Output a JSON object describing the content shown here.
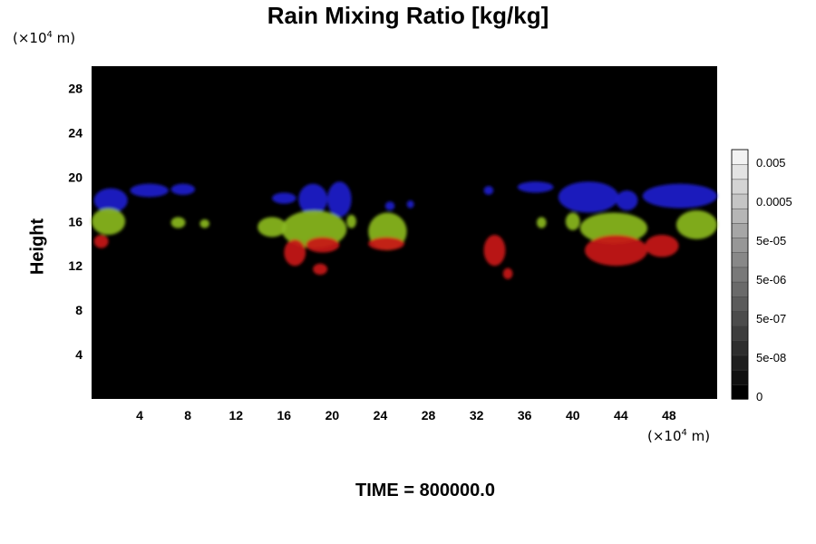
{
  "chart_data": {
    "type": "heatmap",
    "title": "Rain Mixing Ratio [kg/kg]",
    "ylabel": "Height",
    "x_unit": {
      "prefix": "(×10",
      "exp": "4",
      "suffix": " m)"
    },
    "y_unit": {
      "prefix": "(×10",
      "exp": "4",
      "suffix": " m)"
    },
    "xlim": [
      0,
      52
    ],
    "ylim": [
      0,
      30
    ],
    "x_ticks": [
      4,
      8,
      12,
      16,
      20,
      24,
      28,
      32,
      36,
      40,
      44,
      48
    ],
    "y_ticks": [
      4,
      8,
      12,
      16,
      20,
      24,
      28
    ],
    "grid": false,
    "background": "#000000",
    "footer": "TIME = 800000.0",
    "colorbar": {
      "labels": [
        "0.005",
        "0.0005",
        "5e-05",
        "5e-06",
        "5e-07",
        "5e-08",
        "0"
      ],
      "levels": 17
    },
    "layers": [
      {
        "name": "upper",
        "color": "#1c1ccc",
        "regions": [
          {
            "x": [
              0.2,
              3.0
            ],
            "y": [
              16.8,
              19.0
            ]
          },
          {
            "x": [
              3.2,
              6.4
            ],
            "y": [
              18.2,
              19.4
            ]
          },
          {
            "x": [
              6.6,
              8.6
            ],
            "y": [
              18.4,
              19.4
            ]
          },
          {
            "x": [
              15.0,
              17.0
            ],
            "y": [
              17.6,
              18.6
            ]
          },
          {
            "x": [
              17.2,
              19.6
            ],
            "y": [
              16.6,
              19.4
            ]
          },
          {
            "x": [
              19.6,
              21.6
            ],
            "y": [
              16.4,
              19.6
            ]
          },
          {
            "x": [
              24.4,
              25.2
            ],
            "y": [
              17.0,
              17.8
            ]
          },
          {
            "x": [
              26.2,
              26.8
            ],
            "y": [
              17.2,
              17.9
            ]
          },
          {
            "x": [
              32.6,
              33.4
            ],
            "y": [
              18.4,
              19.2
            ]
          },
          {
            "x": [
              35.4,
              38.4
            ],
            "y": [
              18.6,
              19.6
            ]
          },
          {
            "x": [
              38.8,
              43.8
            ],
            "y": [
              16.8,
              19.6
            ]
          },
          {
            "x": [
              43.6,
              45.4
            ],
            "y": [
              17.0,
              18.8
            ]
          },
          {
            "x": [
              45.8,
              52.0
            ],
            "y": [
              17.2,
              19.4
            ]
          }
        ]
      },
      {
        "name": "middle",
        "color": "#8ab820",
        "regions": [
          {
            "x": [
              0.0,
              2.8
            ],
            "y": [
              14.8,
              17.2
            ]
          },
          {
            "x": [
              6.6,
              7.8
            ],
            "y": [
              15.4,
              16.4
            ]
          },
          {
            "x": [
              9.0,
              9.8
            ],
            "y": [
              15.4,
              16.2
            ]
          },
          {
            "x": [
              13.8,
              16.2
            ],
            "y": [
              14.6,
              16.4
            ]
          },
          {
            "x": [
              15.8,
              21.2
            ],
            "y": [
              13.6,
              17.0
            ]
          },
          {
            "x": [
              21.2,
              22.0
            ],
            "y": [
              15.4,
              16.6
            ]
          },
          {
            "x": [
              23.0,
              26.2
            ],
            "y": [
              13.4,
              16.8
            ]
          },
          {
            "x": [
              37.0,
              37.8
            ],
            "y": [
              15.4,
              16.4
            ]
          },
          {
            "x": [
              39.4,
              40.6
            ],
            "y": [
              15.2,
              16.8
            ]
          },
          {
            "x": [
              40.6,
              46.2
            ],
            "y": [
              14.0,
              16.8
            ]
          },
          {
            "x": [
              48.6,
              52.0
            ],
            "y": [
              14.4,
              17.0
            ]
          }
        ]
      },
      {
        "name": "lower",
        "color": "#c81818",
        "regions": [
          {
            "x": [
              0.2,
              1.4
            ],
            "y": [
              13.6,
              14.8
            ]
          },
          {
            "x": [
              16.0,
              17.8
            ],
            "y": [
              12.0,
              14.4
            ]
          },
          {
            "x": [
              17.8,
              20.6
            ],
            "y": [
              13.2,
              14.6
            ]
          },
          {
            "x": [
              18.4,
              19.6
            ],
            "y": [
              11.2,
              12.2
            ]
          },
          {
            "x": [
              23.0,
              26.0
            ],
            "y": [
              13.4,
              14.6
            ]
          },
          {
            "x": [
              32.6,
              34.4
            ],
            "y": [
              12.0,
              14.8
            ]
          },
          {
            "x": [
              34.2,
              35.0
            ],
            "y": [
              10.8,
              11.8
            ]
          },
          {
            "x": [
              41.0,
              46.2
            ],
            "y": [
              12.0,
              14.8
            ]
          },
          {
            "x": [
              46.0,
              48.8
            ],
            "y": [
              12.8,
              14.8
            ]
          }
        ]
      }
    ]
  }
}
